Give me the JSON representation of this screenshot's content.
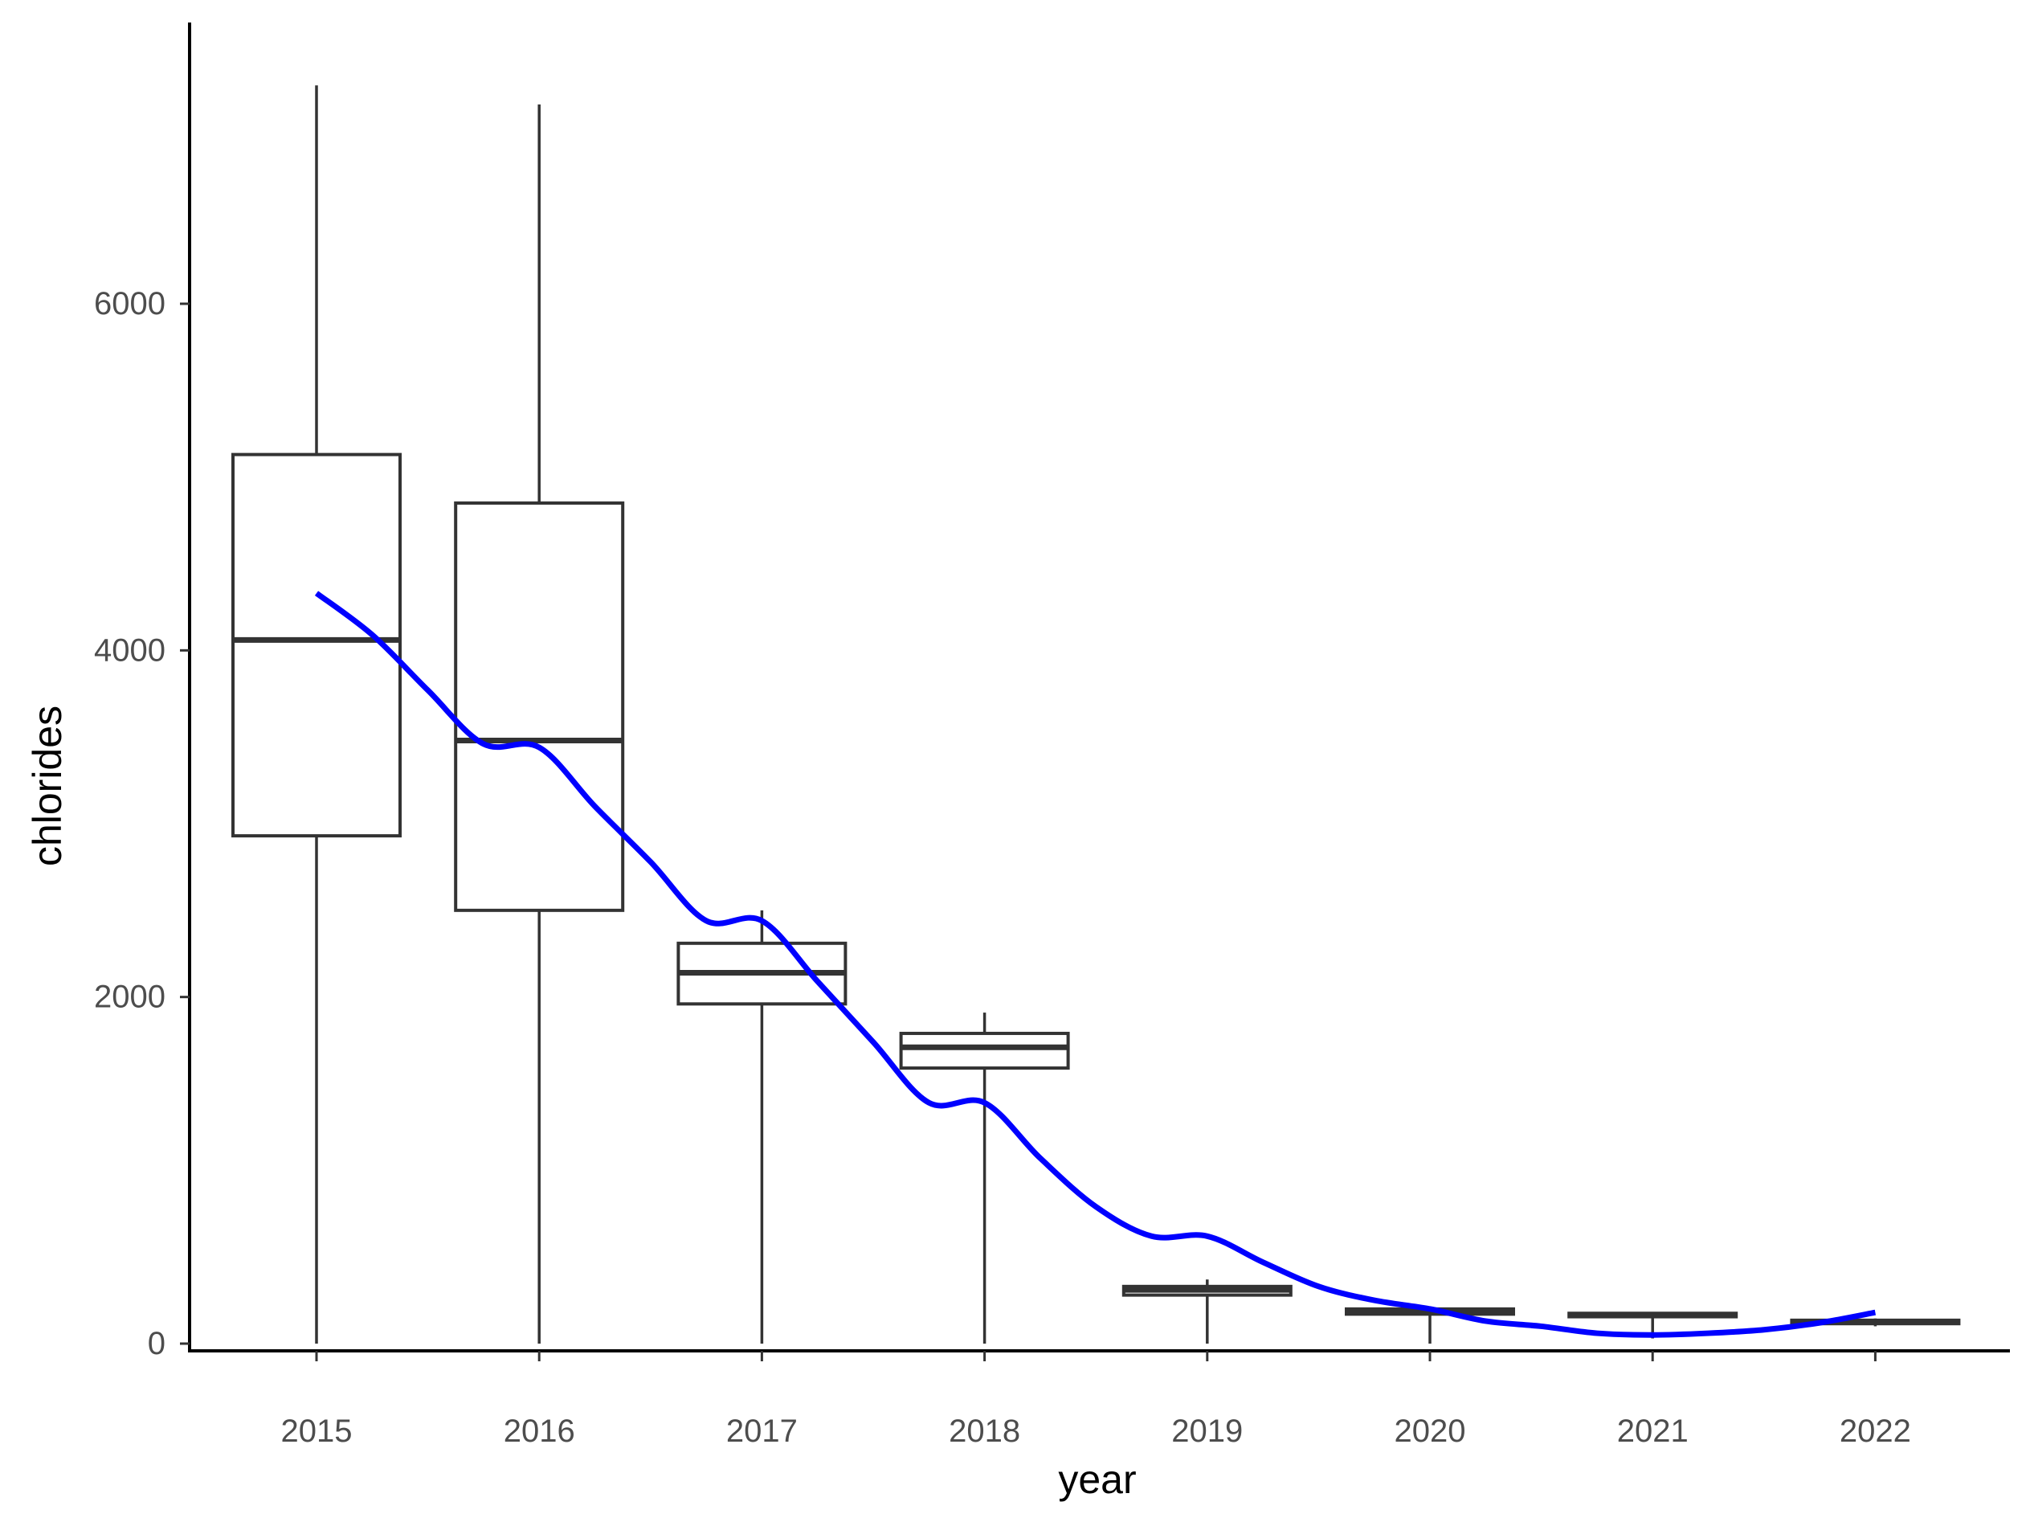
{
  "chart_data": {
    "type": "box",
    "title": "",
    "xlabel": "year",
    "ylabel": "chlorides",
    "categories": [
      "2015",
      "2016",
      "2017",
      "2018",
      "2019",
      "2020",
      "2021",
      "2022"
    ],
    "y_ticks": [
      0,
      2000,
      4000,
      6000
    ],
    "y_tick_labels": [
      "0",
      "2000",
      "4000",
      "6000"
    ],
    "ylim": [
      -60,
      7500
    ],
    "grid": false,
    "legend": "none",
    "box_color": "#333333",
    "trend_color": "#0000ff",
    "boxes": [
      {
        "category": "2015",
        "min": 0,
        "q1": 2930,
        "median": 4060,
        "q3": 5130,
        "max": 7260
      },
      {
        "category": "2016",
        "min": 0,
        "q1": 2500,
        "median": 3480,
        "q3": 4850,
        "max": 7150
      },
      {
        "category": "2017",
        "min": 0,
        "q1": 1960,
        "median": 2140,
        "q3": 2310,
        "max": 2500
      },
      {
        "category": "2018",
        "min": 0,
        "q1": 1590,
        "median": 1710,
        "q3": 1790,
        "max": 1910
      },
      {
        "category": "2019",
        "min": 0,
        "q1": 280,
        "median": 310,
        "q3": 330,
        "max": 370
      },
      {
        "category": "2020",
        "min": 0,
        "q1": 170,
        "median": 190,
        "q3": 200,
        "max": 210
      },
      {
        "category": "2021",
        "min": 30,
        "q1": 155,
        "median": 165,
        "q3": 175,
        "max": 180
      },
      {
        "category": "2022",
        "min": 100,
        "q1": 115,
        "median": 125,
        "q3": 135,
        "max": 145
      }
    ],
    "trend": {
      "type": "smooth",
      "x": [
        2015.0,
        2015.25,
        2015.5,
        2015.75,
        2016.0,
        2016.25,
        2016.5,
        2016.75,
        2017.0,
        2017.25,
        2017.5,
        2017.75,
        2018.0,
        2018.25,
        2018.5,
        2018.75,
        2019.0,
        2019.25,
        2019.5,
        2019.75,
        2020.0,
        2020.25,
        2020.5,
        2020.75,
        2021.0,
        2021.25,
        2021.5,
        2021.75,
        2022.0
      ],
      "y": [
        4330,
        4090,
        3770,
        3460,
        3440,
        3100,
        2780,
        2440,
        2440,
        2090,
        1740,
        1390,
        1390,
        1070,
        790,
        620,
        620,
        470,
        330,
        250,
        200,
        130,
        100,
        60,
        50,
        60,
        80,
        120,
        180
      ]
    }
  }
}
